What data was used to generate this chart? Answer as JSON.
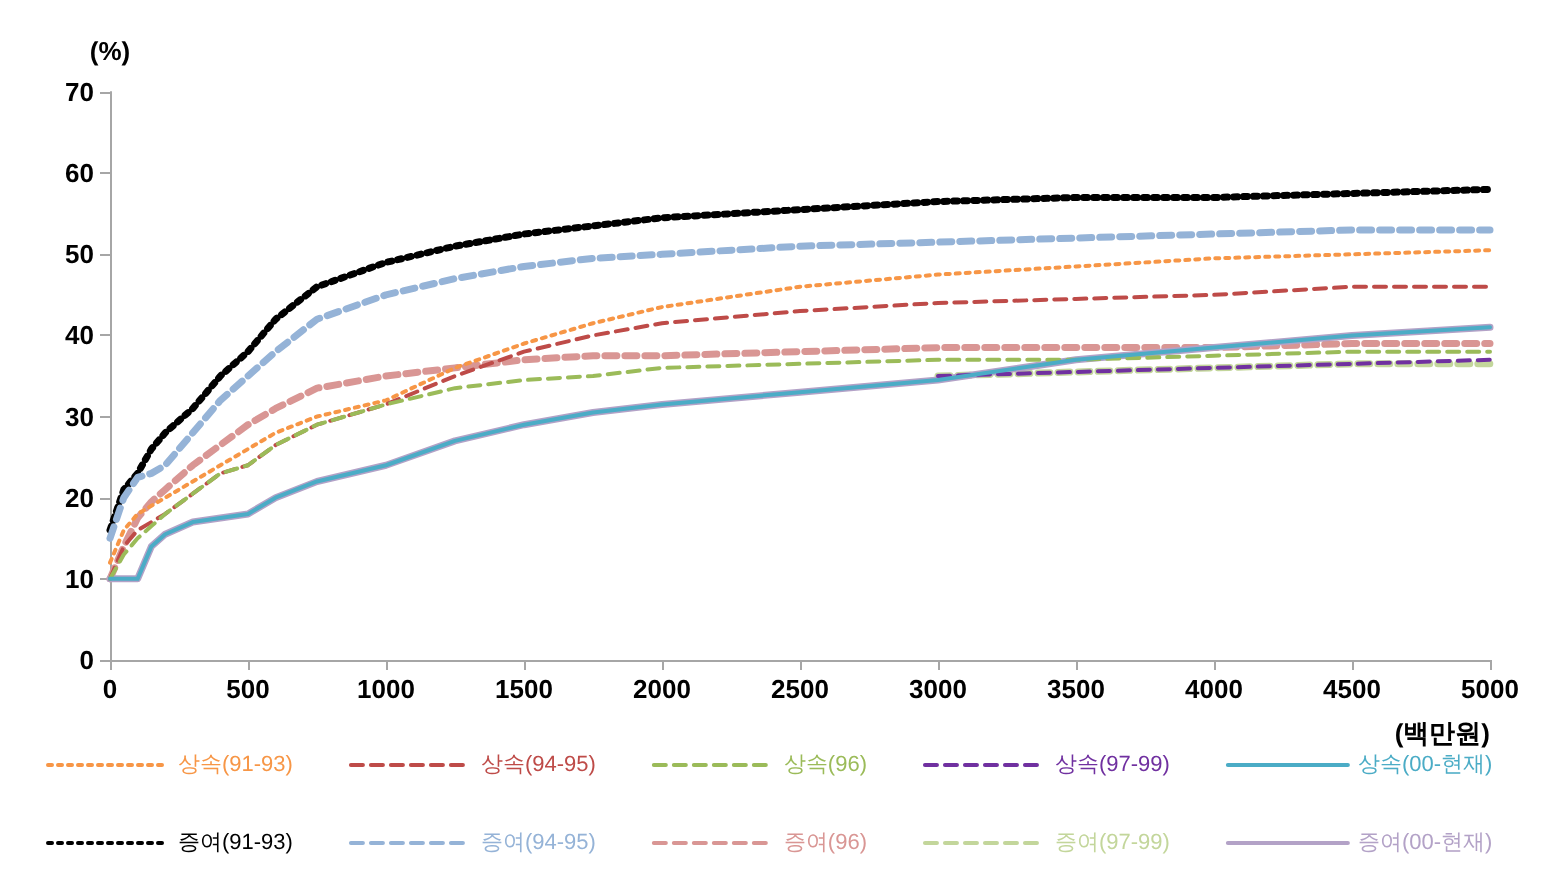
{
  "chart_data": {
    "type": "line",
    "ylabel": "(%)",
    "xlabel": "(백만원)",
    "grid": false,
    "legend": "bottom",
    "marker": "none",
    "x": [
      0,
      50,
      100,
      150,
      200,
      300,
      400,
      500,
      600,
      750,
      1000,
      1250,
      1500,
      1750,
      2000,
      2500,
      3000,
      3500,
      4000,
      4500,
      5000
    ],
    "xlim": [
      0,
      5000
    ],
    "xticks": [
      0,
      500,
      1000,
      1500,
      2000,
      2500,
      3000,
      3500,
      4000,
      4500,
      5000
    ],
    "ylim": [
      0,
      70
    ],
    "yticks": [
      0,
      10,
      20,
      30,
      40,
      50,
      60,
      70
    ],
    "series": [
      {
        "name": "상속(91-93)",
        "color": "#f79646",
        "line_style": "dotted",
        "values": [
          12,
          16,
          18,
          19,
          20,
          22,
          24,
          26,
          28,
          30,
          32,
          36,
          39,
          41.5,
          43.5,
          46,
          47.5,
          48.5,
          49.5,
          50,
          50.5
        ]
      },
      {
        "name": "상속(94-95)",
        "color": "#be4b48",
        "line_style": "dashed",
        "values": [
          10,
          14,
          16,
          17,
          18,
          20.5,
          23,
          24,
          26.5,
          29,
          31.5,
          35,
          38,
          40,
          41.5,
          43,
          44,
          44.5,
          45,
          46,
          46
        ]
      },
      {
        "name": "상속(96)",
        "color": "#9bbb59",
        "line_style": "dashed",
        "values": [
          10,
          13,
          15,
          16.5,
          18,
          20.5,
          23,
          24,
          26.5,
          29,
          31.5,
          33.5,
          34.5,
          35,
          36,
          36.5,
          37,
          37,
          37.5,
          38,
          38
        ]
      },
      {
        "name": "상속(97-99)",
        "color": "#7030a0",
        "line_style": "dashed",
        "values": [
          null,
          null,
          null,
          null,
          null,
          null,
          null,
          null,
          null,
          null,
          null,
          null,
          null,
          null,
          null,
          null,
          35,
          35.5,
          36,
          36.5,
          37
        ]
      },
      {
        "name": "상속(00-현재)",
        "color": "#4bacc6",
        "line_style": "solid",
        "values": [
          10,
          10,
          10,
          14,
          15.5,
          17,
          17.5,
          18,
          20,
          22,
          24,
          27,
          29,
          30.5,
          31.5,
          33,
          34.5,
          37,
          38.5,
          40,
          41
        ]
      },
      {
        "name": "증여(91-93)",
        "color": "#000000",
        "line_style": "dotted",
        "values": [
          16,
          21,
          23,
          26,
          28,
          31,
          35,
          38,
          42,
          46,
          49,
          51,
          52.5,
          53.5,
          54.5,
          55.5,
          56.5,
          57,
          57,
          57.5,
          58
        ]
      },
      {
        "name": "증여(94-95)",
        "color": "#95b3d7",
        "line_style": "dashed",
        "values": [
          15,
          20,
          22.5,
          23,
          24,
          28,
          32,
          35,
          38,
          42,
          45,
          47,
          48.5,
          49.5,
          50,
          51,
          51.5,
          52,
          52.5,
          53,
          53
        ]
      },
      {
        "name": "증여(96)",
        "color": "#d99694",
        "line_style": "dashed",
        "values": [
          10,
          14,
          17.5,
          19.5,
          21,
          24,
          26.5,
          29,
          31,
          33.5,
          35,
          36,
          37,
          37.5,
          37.5,
          38,
          38.5,
          38.5,
          38.5,
          39,
          39
        ]
      },
      {
        "name": "증여(97-99)",
        "color": "#c3d69b",
        "line_style": "dashed",
        "values": [
          null,
          null,
          null,
          null,
          null,
          null,
          null,
          null,
          null,
          null,
          null,
          null,
          null,
          null,
          null,
          null,
          35,
          35.5,
          36,
          36.5,
          36.5
        ]
      },
      {
        "name": "증여(00-현재)",
        "color": "#b3a2c7",
        "line_style": "solid",
        "values": [
          10,
          10,
          10,
          14,
          15.5,
          17,
          17.5,
          18,
          20,
          22,
          24,
          27,
          29,
          30.5,
          31.5,
          33,
          34.5,
          37,
          38.5,
          40,
          41
        ]
      }
    ]
  }
}
